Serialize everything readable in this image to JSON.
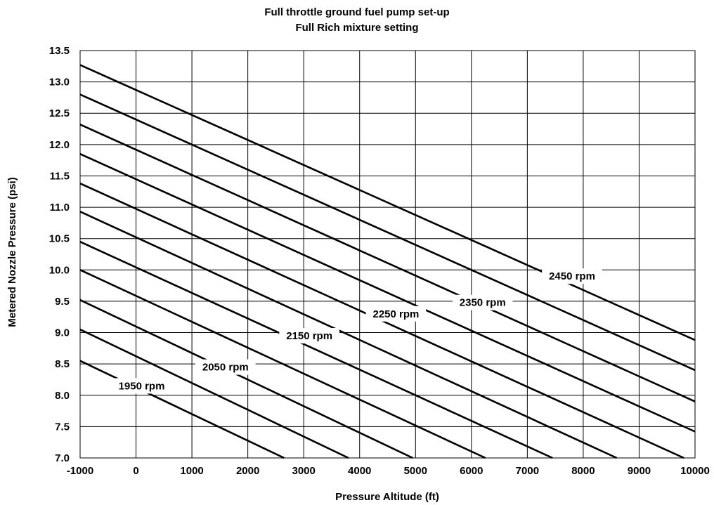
{
  "chart_data": {
    "type": "line",
    "title": "Full throttle ground fuel pump set-up",
    "subtitle": "Full Rich mixture setting",
    "xlabel": "Pressure Altitude (ft)",
    "ylabel": "Metered Nozzle Pressure (psi)",
    "xlim": [
      -1000,
      10000
    ],
    "ylim": [
      7.0,
      13.5
    ],
    "xticks": [
      "-1000",
      "0",
      "1000",
      "2000",
      "3000",
      "4000",
      "5000",
      "6000",
      "7000",
      "8000",
      "9000",
      "10000"
    ],
    "yticks": [
      "7.0",
      "7.5",
      "8.0",
      "8.5",
      "9.0",
      "9.5",
      "10.0",
      "10.5",
      "11.0",
      "11.5",
      "12.0",
      "12.5",
      "13.0",
      "13.5"
    ],
    "grid": true,
    "series": [
      {
        "x": [
          -1000,
          2650
        ],
        "y": [
          8.55,
          7.0
        ]
      },
      {
        "x": [
          -1000,
          3800
        ],
        "y": [
          9.05,
          7.0
        ]
      },
      {
        "x": [
          -1000,
          4950
        ],
        "y": [
          9.52,
          7.0
        ]
      },
      {
        "x": [
          -1000,
          6250
        ],
        "y": [
          10.0,
          7.0
        ]
      },
      {
        "x": [
          -1000,
          7450
        ],
        "y": [
          10.45,
          7.0
        ]
      },
      {
        "x": [
          -1000,
          8600
        ],
        "y": [
          10.93,
          7.0
        ]
      },
      {
        "x": [
          -1000,
          9800
        ],
        "y": [
          11.38,
          7.0
        ]
      },
      {
        "x": [
          -1000,
          10000
        ],
        "y": [
          11.85,
          7.42
        ]
      },
      {
        "x": [
          -1000,
          10000
        ],
        "y": [
          12.32,
          7.9
        ]
      },
      {
        "x": [
          -1000,
          10000
        ],
        "y": [
          12.8,
          8.4
        ]
      },
      {
        "x": [
          -1000,
          10000
        ],
        "y": [
          13.27,
          8.88
        ]
      }
    ],
    "annotations": [
      {
        "text": "1950 rpm",
        "x": 100,
        "y": 8.15
      },
      {
        "text": "2050 rpm",
        "x": 1600,
        "y": 8.45
      },
      {
        "text": "2150 rpm",
        "x": 3100,
        "y": 8.95
      },
      {
        "text": "2250 rpm",
        "x": 4650,
        "y": 9.3
      },
      {
        "text": "2350 rpm",
        "x": 6200,
        "y": 9.48
      },
      {
        "text": "2450 rpm",
        "x": 7800,
        "y": 9.9
      }
    ]
  }
}
